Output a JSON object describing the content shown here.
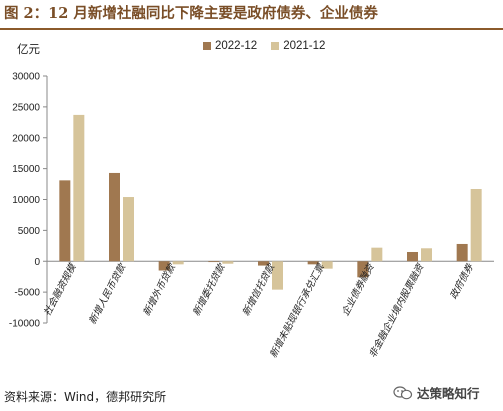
{
  "figure": {
    "title": "图 2：12 月新增社融同比下降主要是政府债券、企业债券",
    "unit": "亿元",
    "source": "资料来源：Wind，德邦研究所",
    "watermark": "达策略知行"
  },
  "colors": {
    "series_2022": "#a07850",
    "series_2021": "#d6c49a",
    "title": "#7a4e27",
    "rule": "#8b5a2b"
  },
  "chart_data": {
    "type": "bar",
    "title": "",
    "xlabel": "",
    "ylabel": "亿元",
    "ylim": [
      -10000,
      30000
    ],
    "yticks": [
      -10000,
      -5000,
      0,
      5000,
      10000,
      15000,
      20000,
      25000,
      30000
    ],
    "grid": false,
    "legend_position": "top",
    "categories": [
      "社会融资规模",
      "新增人民币贷款",
      "新增外币贷款",
      "新增委托贷款",
      "新增信托贷款",
      "新增未贴现银行承兑汇票",
      "企业债券融资",
      "非金融企业境内股票融资",
      "政府债券"
    ],
    "series": [
      {
        "name": "2022-12",
        "values": [
          13100,
          14300,
          -1500,
          -100,
          -700,
          -500,
          -2600,
          1500,
          2800
        ]
      },
      {
        "name": "2021-12",
        "values": [
          23700,
          10400,
          -500,
          -400,
          -4600,
          -1200,
          2200,
          2100,
          11700
        ]
      }
    ]
  }
}
